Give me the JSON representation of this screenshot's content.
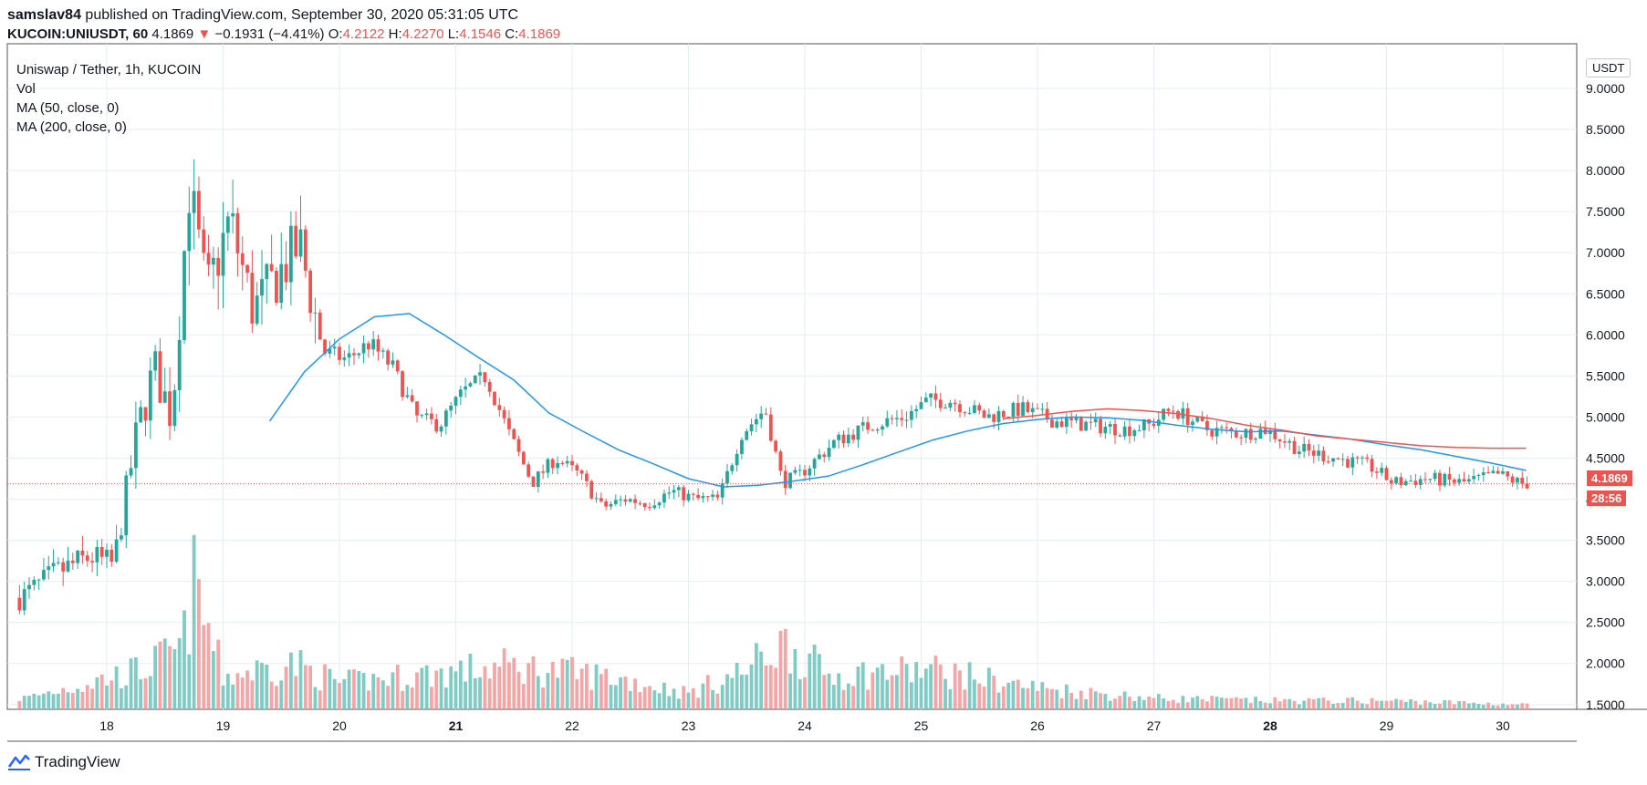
{
  "header": {
    "publisher": "samslav84",
    "published_text": "published on TradingView.com, September 30, 2020 05:31:05 UTC",
    "symbol": "KUCOIN:UNIUSDT, 60",
    "last": "4.1869",
    "change": "−0.1931 (−4.41%)",
    "o_label": "O:",
    "o": "4.2122",
    "h_label": "H:",
    "h": "4.2270",
    "l_label": "L:",
    "l": "4.1546",
    "c_label": "C:",
    "c": "4.1869"
  },
  "legend": {
    "title": "Uniswap / Tether, 1h, KUCOIN",
    "vol": "Vol",
    "ma50": "MA (50, close, 0)",
    "ma200": "MA (200, close, 0)"
  },
  "price_axis": {
    "unit": "USDT",
    "last_price_tag": "4.1869",
    "countdown_tag": "28:56"
  },
  "footer": {
    "brand": "TradingView"
  },
  "colors": {
    "up": "#26a69a",
    "down": "#ef5350",
    "ma50": "#2196f3",
    "ma200": "#ef5350",
    "vol_up": "#80cbc4",
    "vol_down": "#f4a6a6",
    "grid": "#e6eef5"
  },
  "chart_data": {
    "type": "candlestick",
    "timeframe": "1h",
    "x_ticks": [
      "18",
      "19",
      "20",
      "21",
      "22",
      "23",
      "24",
      "25",
      "26",
      "27",
      "28",
      "29",
      "30"
    ],
    "y_ticks": [
      "1.5000",
      "2.0000",
      "2.5000",
      "3.0000",
      "3.5000",
      "4.0000",
      "4.5000",
      "5.0000",
      "5.5000",
      "6.0000",
      "6.5000",
      "7.0000",
      "7.5000",
      "8.0000",
      "8.5000",
      "9.0000"
    ],
    "ylim": [
      1.4,
      9.2
    ],
    "last_price": 4.1869,
    "close_path": {
      "days": [
        17.3,
        17.6,
        17.9,
        18.1,
        18.3,
        18.45,
        18.6,
        18.75,
        18.9,
        19.1,
        19.3,
        19.5,
        19.7,
        19.9,
        20.1,
        20.3,
        20.5,
        20.7,
        20.9,
        21.1,
        21.3,
        21.5,
        21.7,
        21.9,
        22.1,
        22.3,
        22.5,
        22.7,
        22.9,
        23.1,
        23.3,
        23.5,
        23.7,
        23.85,
        24.0,
        24.3,
        24.6,
        24.9,
        25.1,
        25.3,
        25.6,
        25.9,
        26.2,
        26.5,
        26.8,
        27.0,
        27.2,
        27.5,
        27.8,
        28.0,
        28.3,
        28.6,
        28.9,
        29.1,
        29.4,
        29.7,
        30.0,
        30.2
      ],
      "close": [
        2.8,
        3.1,
        3.3,
        3.2,
        4.8,
        5.6,
        5.0,
        7.8,
        6.5,
        7.4,
        6.3,
        6.7,
        7.1,
        5.8,
        5.7,
        5.9,
        5.6,
        5.0,
        4.9,
        5.3,
        5.5,
        4.8,
        4.2,
        4.5,
        4.3,
        3.9,
        4.0,
        3.95,
        4.1,
        4.0,
        4.0,
        4.8,
        5.1,
        4.2,
        4.3,
        4.7,
        4.9,
        5.0,
        5.2,
        5.2,
        5.0,
        5.1,
        4.95,
        4.9,
        4.85,
        4.9,
        5.1,
        4.85,
        4.8,
        4.85,
        4.6,
        4.5,
        4.4,
        4.2,
        4.25,
        4.2,
        4.3,
        4.19
      ]
    },
    "ma50": {
      "days": [
        19.4,
        19.7,
        20.0,
        20.3,
        20.6,
        20.9,
        21.2,
        21.5,
        21.8,
        22.1,
        22.4,
        22.7,
        23.0,
        23.3,
        23.6,
        23.9,
        24.2,
        24.5,
        24.8,
        25.1,
        25.4,
        25.7,
        26.0,
        26.3,
        26.6,
        26.9,
        27.2,
        27.5,
        27.8,
        28.1,
        28.4,
        28.7,
        29.0,
        29.3,
        29.6,
        29.9,
        30.2
      ],
      "values": [
        4.95,
        5.55,
        5.95,
        6.22,
        6.26,
        6.0,
        5.72,
        5.45,
        5.05,
        4.82,
        4.6,
        4.43,
        4.25,
        4.15,
        4.17,
        4.22,
        4.28,
        4.42,
        4.57,
        4.72,
        4.83,
        4.92,
        4.97,
        5.0,
        4.99,
        4.96,
        4.9,
        4.85,
        4.82,
        4.83,
        4.78,
        4.73,
        4.66,
        4.6,
        4.52,
        4.44,
        4.35
      ]
    },
    "ma200": {
      "days": [
        25.7,
        26.0,
        26.3,
        26.6,
        26.9,
        27.2,
        27.5,
        27.8,
        28.1,
        28.4,
        28.7,
        29.0,
        29.3,
        29.6,
        29.9,
        30.2
      ],
      "values": [
        4.98,
        5.02,
        5.07,
        5.1,
        5.08,
        5.04,
        4.98,
        4.9,
        4.84,
        4.77,
        4.73,
        4.69,
        4.65,
        4.63,
        4.62,
        4.62
      ]
    },
    "volume_peaks": {
      "days": [
        17.3,
        18.3,
        18.65,
        18.75,
        19.0,
        19.6,
        20.0,
        21.45,
        22.3,
        23.0,
        23.5,
        23.75,
        23.85,
        24.2,
        25.1,
        26.0,
        27.0,
        28.0,
        29.0,
        30.2
      ],
      "rel": [
        0.08,
        0.3,
        0.47,
        0.95,
        0.25,
        0.35,
        0.2,
        0.33,
        0.25,
        0.12,
        0.3,
        0.48,
        0.5,
        0.26,
        0.3,
        0.16,
        0.08,
        0.06,
        0.06,
        0.03
      ]
    }
  }
}
